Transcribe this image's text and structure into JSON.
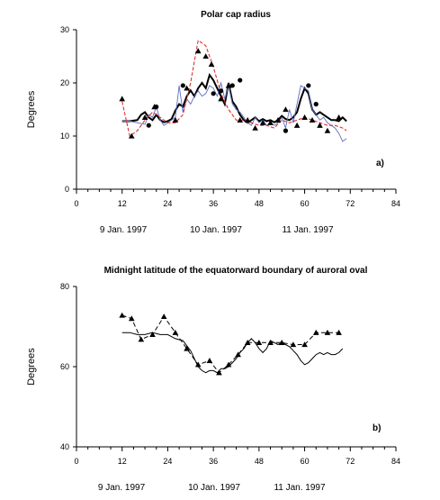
{
  "chart_data": [
    {
      "type": "line",
      "title": "Polar cap radius",
      "ylabel": "Degrees",
      "panel_label": "a)",
      "xlim": [
        0,
        84
      ],
      "ylim": [
        0,
        30
      ],
      "xticks": [
        0,
        12,
        24,
        36,
        48,
        60,
        72,
        84
      ],
      "yticks": [
        0,
        10,
        20,
        30
      ],
      "date_labels": [
        "9 Jan. 1997",
        "10 Jan. 1997",
        "11 Jan. 1997"
      ],
      "series": [
        {
          "style": "thick-black",
          "color": "#000000",
          "x": [
            12,
            14,
            16,
            17,
            18,
            19,
            20,
            21,
            22,
            23,
            24,
            25,
            26,
            27,
            28,
            29,
            30,
            31,
            32,
            33,
            34,
            35,
            36,
            37,
            38,
            39,
            40,
            41,
            42,
            43,
            44,
            45,
            46,
            47,
            48,
            49,
            50,
            51,
            52,
            53,
            54,
            55,
            56,
            57,
            58,
            59,
            60,
            61,
            62,
            63,
            64,
            65,
            66,
            67,
            68,
            69,
            70,
            71
          ],
          "y": [
            12.8,
            12.8,
            13.0,
            14.0,
            14.5,
            13.5,
            13.0,
            14.0,
            13.0,
            12.6,
            12.8,
            13.2,
            14.8,
            16.0,
            15.5,
            17.5,
            18.6,
            17.5,
            19.0,
            20.0,
            19.0,
            21.5,
            20.5,
            19.0,
            17.5,
            16.0,
            20.0,
            16.5,
            15.5,
            14.0,
            13.0,
            12.5,
            13.0,
            13.5,
            12.8,
            13.2,
            12.8,
            13.0,
            12.6,
            13.0,
            13.8,
            13.2,
            13.0,
            13.5,
            14.5,
            17.0,
            19.0,
            18.0,
            15.0,
            14.0,
            14.5,
            14.0,
            13.5,
            13.0,
            13.0,
            12.8,
            13.5,
            12.8
          ]
        },
        {
          "style": "thin-blue",
          "color": "#5a6fc4",
          "x": [
            12,
            14,
            16,
            18,
            19,
            20,
            21,
            22,
            23,
            24,
            25,
            26,
            27,
            28,
            29,
            30,
            31,
            32,
            33,
            34,
            35,
            36,
            37,
            38,
            39,
            40,
            41,
            42,
            43,
            44,
            45,
            46,
            47,
            48,
            49,
            50,
            51,
            52,
            53,
            54,
            55,
            56,
            57,
            58,
            59,
            60,
            61,
            62,
            63,
            64,
            65,
            66,
            67,
            68,
            69,
            70,
            71
          ],
          "y": [
            12.8,
            12.8,
            12.5,
            12.2,
            14.0,
            13.5,
            15.5,
            13.0,
            12.0,
            12.5,
            13.0,
            13.5,
            19.5,
            14.5,
            17.0,
            16.0,
            17.5,
            18.5,
            17.5,
            18.0,
            19.5,
            19.0,
            17.5,
            20.0,
            17.0,
            19.5,
            16.0,
            15.0,
            14.5,
            13.5,
            12.5,
            12.0,
            13.5,
            12.5,
            13.0,
            12.0,
            12.5,
            12.0,
            12.5,
            13.5,
            11.5,
            15.0,
            12.5,
            16.0,
            19.5,
            19.0,
            18.5,
            15.0,
            14.0,
            13.0,
            13.5,
            12.5,
            12.0,
            11.5,
            10.5,
            9.0,
            9.5
          ]
        },
        {
          "style": "dashed-red",
          "color": "#e0302e",
          "x": [
            12,
            14,
            16,
            18,
            20,
            22,
            24,
            26,
            28,
            30,
            32,
            34,
            36,
            38,
            40,
            42,
            44,
            46,
            48,
            50,
            52,
            54,
            56,
            58,
            60,
            62,
            64,
            66,
            68,
            70,
            71
          ],
          "y": [
            16.5,
            10.0,
            11.0,
            13.0,
            14.5,
            13.5,
            12.5,
            12.5,
            14.0,
            20.0,
            28.0,
            27.0,
            23.0,
            18.0,
            15.0,
            13.0,
            13.0,
            12.5,
            12.0,
            12.0,
            11.5,
            13.0,
            12.5,
            13.0,
            13.5,
            13.0,
            12.5,
            12.0,
            12.0,
            11.5,
            11.0
          ]
        },
        {
          "style": "triangle-markers",
          "x": [
            12,
            14.5,
            18,
            20.5,
            26,
            29,
            32,
            34,
            35.5,
            38,
            40,
            43,
            45,
            47,
            49,
            51,
            53,
            55,
            58,
            60,
            62,
            64,
            66,
            69
          ],
          "y": [
            17,
            10,
            13.5,
            15.5,
            13,
            19,
            26,
            25,
            23.5,
            17,
            19.5,
            13,
            13,
            11.5,
            12.5,
            12.5,
            13,
            15,
            12,
            13.5,
            13,
            12,
            11,
            13.5
          ]
        },
        {
          "style": "circle-markers",
          "x": [
            19,
            21,
            28,
            36,
            38,
            41,
            43,
            55,
            61,
            63
          ],
          "y": [
            12,
            15.5,
            19.5,
            18,
            18.5,
            19.5,
            20.5,
            11,
            19.5,
            16
          ]
        }
      ]
    },
    {
      "type": "line",
      "title": "Midnight latitude of the equatorward boundary of auroral oval",
      "ylabel": "Degrees",
      "panel_label": "b)",
      "xlim": [
        0,
        84
      ],
      "ylim": [
        40,
        80
      ],
      "xticks": [
        0,
        12,
        24,
        36,
        48,
        60,
        72,
        84
      ],
      "yticks": [
        40,
        60,
        80
      ],
      "date_labels": [
        "9 Jan. 1997",
        "10 Jan. 1997",
        "11 Jan. 1997"
      ],
      "series": [
        {
          "style": "solid-black",
          "color": "#000000",
          "x": [
            12,
            14,
            16,
            18,
            20,
            22,
            24,
            26,
            28,
            30,
            31,
            32,
            33,
            34,
            35,
            36,
            37,
            38,
            39,
            40,
            41,
            42,
            43,
            44,
            45,
            46,
            47,
            48,
            49,
            50,
            51,
            52,
            53,
            54,
            55,
            56,
            57,
            58,
            59,
            60,
            61,
            62,
            63,
            64,
            65,
            66,
            67,
            68,
            69,
            70
          ],
          "y": [
            68.5,
            68.5,
            68.0,
            68.0,
            68.5,
            68.0,
            68.0,
            67.0,
            66.5,
            64.0,
            62.0,
            60.0,
            59.0,
            58.5,
            59.0,
            59.0,
            58.5,
            59.5,
            59.5,
            60.0,
            61.0,
            62.0,
            63.5,
            64.5,
            66.0,
            67.0,
            66.0,
            64.5,
            63.5,
            64.5,
            66.5,
            66.0,
            65.5,
            66.0,
            65.5,
            65.0,
            64.0,
            63.0,
            61.5,
            60.5,
            61.0,
            62.0,
            63.0,
            63.5,
            63.0,
            63.5,
            63.0,
            63.0,
            63.5,
            64.5
          ]
        },
        {
          "style": "dashed-triangles",
          "color": "#000000",
          "x": [
            12,
            14.5,
            17,
            20,
            23,
            26,
            29,
            32,
            35,
            37.5,
            40,
            42.5,
            45,
            48,
            51,
            54,
            57,
            60,
            63,
            66,
            69
          ],
          "y": [
            72.8,
            72.0,
            66.8,
            68.0,
            72.5,
            68.5,
            64.5,
            60.5,
            61.5,
            58.5,
            60.5,
            63.0,
            66.0,
            66.0,
            66.0,
            66.0,
            65.5,
            65.5,
            68.5,
            68.5,
            68.5
          ]
        }
      ]
    }
  ]
}
